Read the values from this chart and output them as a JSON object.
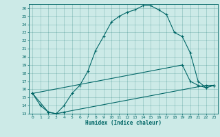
{
  "title": "",
  "xlabel": "Humidex (Indice chaleur)",
  "background_color": "#cceae7",
  "line_color": "#006666",
  "xlim": [
    -0.5,
    23.5
  ],
  "ylim": [
    13,
    26.5
  ],
  "xticks": [
    0,
    1,
    2,
    3,
    4,
    5,
    6,
    7,
    8,
    9,
    10,
    11,
    12,
    13,
    14,
    15,
    16,
    17,
    18,
    19,
    20,
    21,
    22,
    23
  ],
  "yticks": [
    13,
    14,
    15,
    16,
    17,
    18,
    19,
    20,
    21,
    22,
    23,
    24,
    25,
    26
  ],
  "line1_x": [
    0,
    1,
    2,
    3,
    4,
    5,
    6,
    7,
    8,
    9,
    10,
    11,
    12,
    13,
    14,
    15,
    16,
    17,
    18,
    19,
    20,
    21,
    22,
    23
  ],
  "line1_y": [
    15.5,
    14.0,
    13.2,
    13.0,
    14.0,
    15.5,
    16.5,
    18.2,
    20.8,
    22.5,
    24.3,
    25.0,
    25.5,
    25.8,
    26.3,
    26.3,
    25.8,
    25.2,
    23.0,
    22.5,
    20.5,
    17.0,
    16.2,
    16.5
  ],
  "line2_x": [
    0,
    2,
    3,
    4,
    22,
    23
  ],
  "line2_y": [
    15.5,
    13.2,
    13.0,
    13.2,
    16.5,
    16.5
  ],
  "line3_x": [
    0,
    19,
    20,
    21,
    22,
    23
  ],
  "line3_y": [
    15.5,
    19.0,
    17.0,
    16.5,
    16.2,
    16.5
  ],
  "marker": "+"
}
